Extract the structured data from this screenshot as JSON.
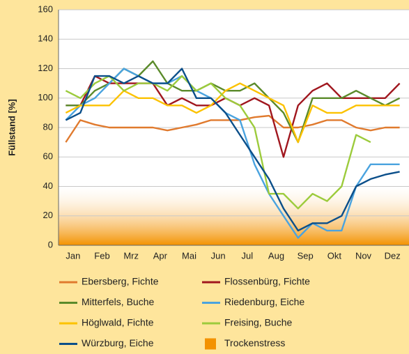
{
  "chart_data": {
    "type": "line",
    "y_label": "Füllstand [%]",
    "categories": [
      "Jan",
      null,
      "Feb",
      null,
      "Mrz",
      null,
      "Apr",
      null,
      "Mai",
      null,
      "Jun",
      null,
      "Jul",
      null,
      "Aug",
      null,
      "Sep",
      null,
      "Okt",
      null,
      "Nov",
      null,
      "Dez",
      null
    ],
    "ylim": [
      0,
      160
    ],
    "yticks": [
      0,
      20,
      40,
      60,
      80,
      100,
      120,
      140,
      160
    ],
    "grid": true,
    "series": [
      {
        "name": "Ebersberg, Fichte",
        "color": "#e07a2e",
        "values": [
          70,
          85,
          82,
          80,
          80,
          80,
          80,
          78,
          80,
          82,
          85,
          85,
          85,
          87,
          88,
          80,
          80,
          82,
          85,
          85,
          80,
          78,
          80,
          80
        ]
      },
      {
        "name": "Flossenbürg, Fichte",
        "color": "#a0161e",
        "values": [
          95,
          95,
          115,
          110,
          110,
          110,
          110,
          95,
          100,
          95,
          95,
          100,
          95,
          100,
          95,
          60,
          95,
          105,
          110,
          100,
          100,
          100,
          100,
          110
        ]
      },
      {
        "name": "Mitterfels, Buche",
        "color": "#5a8a2a",
        "values": [
          95,
          95,
          105,
          110,
          120,
          115,
          125,
          110,
          105,
          105,
          110,
          105,
          105,
          110,
          100,
          90,
          70,
          100,
          100,
          100,
          105,
          100,
          95,
          100
        ]
      },
      {
        "name": "Riedenburg, Eiche",
        "color": "#4aa3df",
        "values": [
          85,
          95,
          100,
          110,
          120,
          115,
          110,
          110,
          115,
          105,
          100,
          90,
          85,
          55,
          35,
          20,
          5,
          15,
          10,
          10,
          40,
          55,
          55,
          55
        ]
      },
      {
        "name": "Höglwald, Fichte",
        "color": "#fcc200",
        "values": [
          90,
          95,
          95,
          95,
          105,
          100,
          100,
          95,
          95,
          90,
          95,
          105,
          110,
          105,
          100,
          95,
          70,
          95,
          90,
          90,
          95,
          95,
          95,
          95
        ]
      },
      {
        "name": "Freising, Buche",
        "color": "#9ccb3c",
        "values": [
          105,
          100,
          110,
          115,
          105,
          110,
          110,
          105,
          115,
          105,
          110,
          100,
          95,
          80,
          35,
          35,
          25,
          35,
          30,
          40,
          75,
          70,
          null,
          null
        ]
      },
      {
        "name": "Würzburg, Eiche",
        "color": "#0b4f8a",
        "values": [
          85,
          90,
          115,
          115,
          110,
          115,
          110,
          110,
          120,
          100,
          100,
          90,
          75,
          60,
          45,
          25,
          10,
          15,
          15,
          20,
          40,
          45,
          48,
          50
        ]
      }
    ],
    "drought_band": {
      "label": "Trockenstress",
      "range": [
        0,
        40
      ],
      "color": "#f39200"
    }
  }
}
